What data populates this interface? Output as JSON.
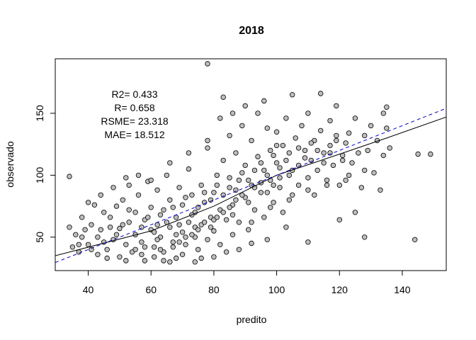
{
  "chart_data": {
    "type": "scatter",
    "title": "2018",
    "xlabel": "predito",
    "ylabel": "observado",
    "xlim": [
      29.5,
      154
    ],
    "ylim": [
      23,
      194
    ],
    "xticks": [
      "40",
      "60",
      "80",
      "100",
      "120",
      "140"
    ],
    "yticks": [
      "50",
      "100",
      "150"
    ],
    "stats": [
      "R2= 0.433",
      "R= 0.658",
      "RSME= 23.318",
      "MAE= 18.512"
    ],
    "point_fill": "#bebebe",
    "point_stroke": "#000000",
    "identity_line": {
      "style": "dashed",
      "color": "#0000cd",
      "points": [
        [
          29.5,
          29.5
        ],
        [
          154,
          154
        ]
      ]
    },
    "fit_line": {
      "color": "#000000",
      "points": [
        [
          29.5,
          35
        ],
        [
          60,
          55
        ],
        [
          80,
          75
        ],
        [
          100,
          100
        ],
        [
          120,
          117
        ],
        [
          135,
          130
        ],
        [
          154,
          147
        ]
      ]
    },
    "points_note": "sample of the dense point cloud",
    "points": [
      [
        34,
        99
      ],
      [
        34,
        58
      ],
      [
        35,
        42
      ],
      [
        37,
        38
      ],
      [
        38,
        50
      ],
      [
        40,
        44
      ],
      [
        41,
        60
      ],
      [
        43,
        36
      ],
      [
        44,
        56
      ],
      [
        45,
        70
      ],
      [
        46,
        40
      ],
      [
        47,
        66
      ],
      [
        48,
        48
      ],
      [
        49,
        75
      ],
      [
        50,
        34
      ],
      [
        50,
        57
      ],
      [
        51,
        80
      ],
      [
        52,
        44
      ],
      [
        53,
        62
      ],
      [
        53,
        92
      ],
      [
        54,
        38
      ],
      [
        55,
        70
      ],
      [
        55,
        52
      ],
      [
        56,
        84
      ],
      [
        57,
        46
      ],
      [
        58,
        64
      ],
      [
        58,
        31
      ],
      [
        59,
        95
      ],
      [
        60,
        56
      ],
      [
        60,
        74
      ],
      [
        61,
        42
      ],
      [
        62,
        88
      ],
      [
        62,
        60
      ],
      [
        63,
        50
      ],
      [
        64,
        72
      ],
      [
        64,
        38
      ],
      [
        65,
        100
      ],
      [
        66,
        58
      ],
      [
        66,
        80
      ],
      [
        67,
        46
      ],
      [
        68,
        66
      ],
      [
        68,
        33
      ],
      [
        69,
        90
      ],
      [
        70,
        54
      ],
      [
        70,
        76
      ],
      [
        71,
        44
      ],
      [
        72,
        62
      ],
      [
        72,
        105
      ],
      [
        73,
        84
      ],
      [
        74,
        50
      ],
      [
        74,
        70
      ],
      [
        75,
        40
      ],
      [
        76,
        92
      ],
      [
        76,
        60
      ],
      [
        77,
        78
      ],
      [
        78,
        48
      ],
      [
        78,
        122
      ],
      [
        78,
        190
      ],
      [
        79,
        66
      ],
      [
        80,
        86
      ],
      [
        80,
        55
      ],
      [
        81,
        100
      ],
      [
        82,
        72
      ],
      [
        82,
        44
      ],
      [
        83,
        112
      ],
      [
        83,
        163
      ],
      [
        84,
        64
      ],
      [
        85,
        90
      ],
      [
        85,
        132
      ],
      [
        86,
        52
      ],
      [
        86,
        76
      ],
      [
        87,
        118
      ],
      [
        88,
        96
      ],
      [
        88,
        62
      ],
      [
        89,
        140
      ],
      [
        90,
        82
      ],
      [
        90,
        108
      ],
      [
        91,
        56
      ],
      [
        92,
        128
      ],
      [
        92,
        92
      ],
      [
        93,
        72
      ],
      [
        94,
        115
      ],
      [
        94,
        150
      ],
      [
        95,
        86
      ],
      [
        96,
        104
      ],
      [
        96,
        66
      ],
      [
        97,
        138
      ],
      [
        98,
        96
      ],
      [
        98,
        120
      ],
      [
        99,
        78
      ],
      [
        100,
        110
      ],
      [
        100,
        135
      ],
      [
        101,
        90
      ],
      [
        102,
        124
      ],
      [
        102,
        70
      ],
      [
        103,
        146
      ],
      [
        104,
        100
      ],
      [
        104,
        118
      ],
      [
        105,
        84
      ],
      [
        105,
        165
      ],
      [
        106,
        130
      ],
      [
        107,
        108
      ],
      [
        107,
        92
      ],
      [
        108,
        140
      ],
      [
        109,
        120
      ],
      [
        110,
        98
      ],
      [
        110,
        150
      ],
      [
        111,
        112
      ],
      [
        112,
        128
      ],
      [
        112,
        84
      ],
      [
        113,
        104
      ],
      [
        114,
        166
      ],
      [
        114,
        136
      ],
      [
        115,
        118
      ],
      [
        116,
        96
      ],
      [
        117,
        144
      ],
      [
        117,
        124
      ],
      [
        118,
        108
      ],
      [
        119,
        156
      ],
      [
        119,
        132
      ],
      [
        120,
        92
      ],
      [
        121,
        116
      ],
      [
        122,
        126
      ],
      [
        123,
        100
      ],
      [
        124,
        110
      ],
      [
        125,
        146
      ],
      [
        126,
        118
      ],
      [
        127,
        90
      ],
      [
        128,
        132
      ],
      [
        128,
        50
      ],
      [
        129,
        120
      ],
      [
        130,
        140
      ],
      [
        131,
        102
      ],
      [
        132,
        128
      ],
      [
        133,
        88
      ],
      [
        134,
        150
      ],
      [
        134,
        116
      ],
      [
        135,
        138
      ],
      [
        135,
        155
      ],
      [
        136,
        122
      ],
      [
        144,
        48
      ],
      [
        145,
        117
      ],
      [
        149,
        117
      ],
      [
        103,
        58
      ],
      [
        97,
        48
      ],
      [
        110,
        46
      ],
      [
        125,
        70
      ],
      [
        120,
        64
      ],
      [
        92,
        45
      ],
      [
        88,
        40
      ],
      [
        84,
        38
      ],
      [
        76,
        33
      ],
      [
        70,
        36
      ],
      [
        64,
        31
      ],
      [
        58,
        42
      ],
      [
        52,
        31
      ],
      [
        46,
        33
      ],
      [
        42,
        76
      ],
      [
        40,
        78
      ],
      [
        38,
        66
      ],
      [
        44,
        84
      ],
      [
        48,
        90
      ],
      [
        52,
        98
      ],
      [
        56,
        100
      ],
      [
        60,
        96
      ],
      [
        66,
        110
      ],
      [
        72,
        118
      ],
      [
        78,
        128
      ],
      [
        82,
        146
      ],
      [
        86,
        150
      ],
      [
        90,
        156
      ],
      [
        96,
        160
      ],
      [
        100,
        124
      ],
      [
        66,
        30
      ],
      [
        74,
        30
      ],
      [
        80,
        34
      ],
      [
        62,
        48
      ],
      [
        68,
        52
      ],
      [
        74,
        58
      ],
      [
        80,
        64
      ],
      [
        86,
        68
      ],
      [
        92,
        62
      ],
      [
        98,
        74
      ],
      [
        104,
        80
      ],
      [
        110,
        88
      ],
      [
        116,
        92
      ],
      [
        122,
        96
      ],
      [
        128,
        104
      ],
      [
        57,
        58
      ],
      [
        59,
        66
      ],
      [
        61,
        54
      ],
      [
        63,
        68
      ],
      [
        65,
        62
      ],
      [
        67,
        74
      ],
      [
        69,
        60
      ],
      [
        71,
        82
      ],
      [
        73,
        68
      ],
      [
        75,
        74
      ],
      [
        77,
        86
      ],
      [
        79,
        80
      ],
      [
        81,
        92
      ],
      [
        83,
        84
      ],
      [
        85,
        98
      ],
      [
        87,
        88
      ],
      [
        89,
        102
      ],
      [
        91,
        96
      ],
      [
        93,
        104
      ],
      [
        95,
        110
      ],
      [
        97,
        100
      ],
      [
        99,
        116
      ],
      [
        101,
        106
      ],
      [
        103,
        112
      ],
      [
        105,
        104
      ],
      [
        107,
        122
      ],
      [
        109,
        114
      ],
      [
        111,
        126
      ],
      [
        113,
        120
      ],
      [
        115,
        110
      ],
      [
        117,
        118
      ],
      [
        119,
        128
      ],
      [
        121,
        112
      ],
      [
        123,
        134
      ],
      [
        53,
        72
      ],
      [
        51,
        60
      ],
      [
        49,
        52
      ],
      [
        47,
        58
      ],
      [
        45,
        46
      ],
      [
        43,
        50
      ],
      [
        41,
        40
      ],
      [
        39,
        56
      ],
      [
        37,
        44
      ],
      [
        36,
        52
      ],
      [
        55,
        40
      ],
      [
        57,
        36
      ],
      [
        61,
        34
      ],
      [
        63,
        40
      ],
      [
        67,
        42
      ],
      [
        69,
        46
      ],
      [
        71,
        50
      ],
      [
        73,
        52
      ],
      [
        75,
        56
      ],
      [
        77,
        62
      ],
      [
        79,
        58
      ],
      [
        81,
        66
      ],
      [
        83,
        70
      ],
      [
        85,
        74
      ],
      [
        87,
        80
      ],
      [
        89,
        84
      ],
      [
        91,
        78
      ],
      [
        93,
        90
      ],
      [
        95,
        94
      ],
      [
        97,
        86
      ],
      [
        99,
        92
      ],
      [
        101,
        98
      ]
    ]
  }
}
